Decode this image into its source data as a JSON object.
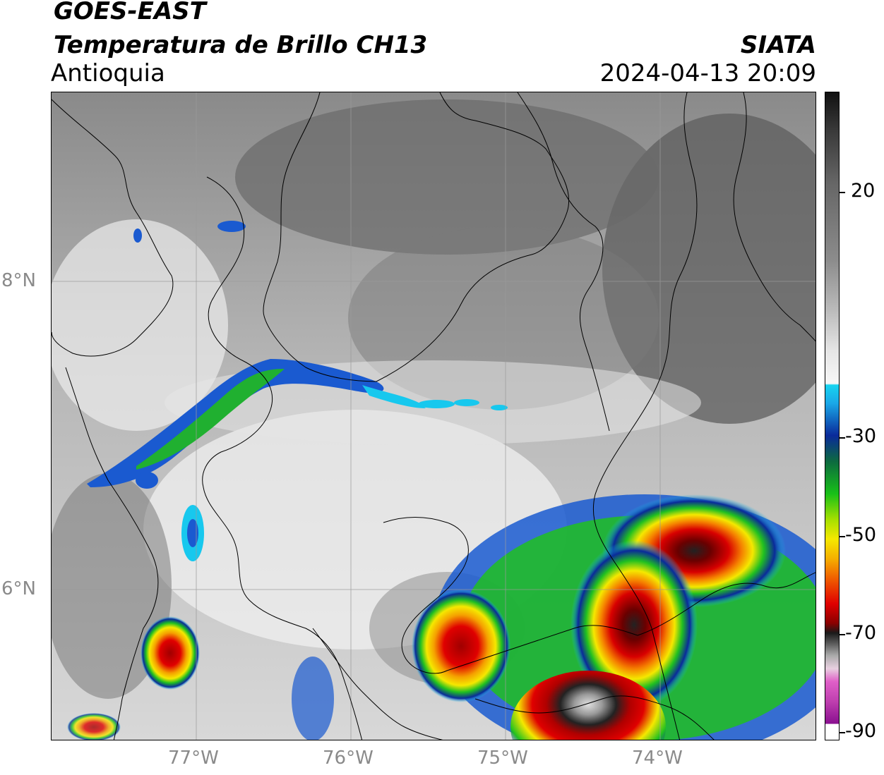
{
  "header": {
    "satellite": "GOES-EAST",
    "product": "Temperatura de Brillo CH13",
    "region": "Antioquia",
    "agency": "SIATA",
    "datetime": "2024-04-13 20:09"
  },
  "map": {
    "lon_range": [
      -77.94,
      -73.0
    ],
    "lat_range": [
      5.0,
      9.2
    ],
    "lat_ticks": [
      {
        "value": 8,
        "label": "8°N"
      },
      {
        "value": 6,
        "label": "6°N"
      }
    ],
    "lon_ticks": [
      {
        "value": -77,
        "label": "77°W"
      },
      {
        "value": -76,
        "label": "76°W"
      },
      {
        "value": -75,
        "label": "75°W"
      },
      {
        "value": -74,
        "label": "74°W"
      }
    ],
    "gridlines": true
  },
  "colorbar": {
    "range": [
      -90,
      40
    ],
    "ticks": [
      {
        "value": 20,
        "label": "20"
      },
      {
        "value": -30,
        "label": "-30"
      },
      {
        "value": -50,
        "label": "-50"
      },
      {
        "value": -70,
        "label": "-70"
      },
      {
        "value": -90,
        "label": "-90"
      }
    ],
    "colors": {
      "warm_dark": "#111111",
      "mid_gray": "#8c8c8c",
      "light_gray": "#f2f2f2",
      "cyan": "#17d4f0",
      "blue": "#0a2a9a",
      "green": "#18c018",
      "yellow": "#f5e800",
      "orange": "#f59a00",
      "red": "#e00000",
      "dark_red": "#6a0000",
      "magenta": "#e03cc8",
      "purple": "#8a1090"
    }
  }
}
